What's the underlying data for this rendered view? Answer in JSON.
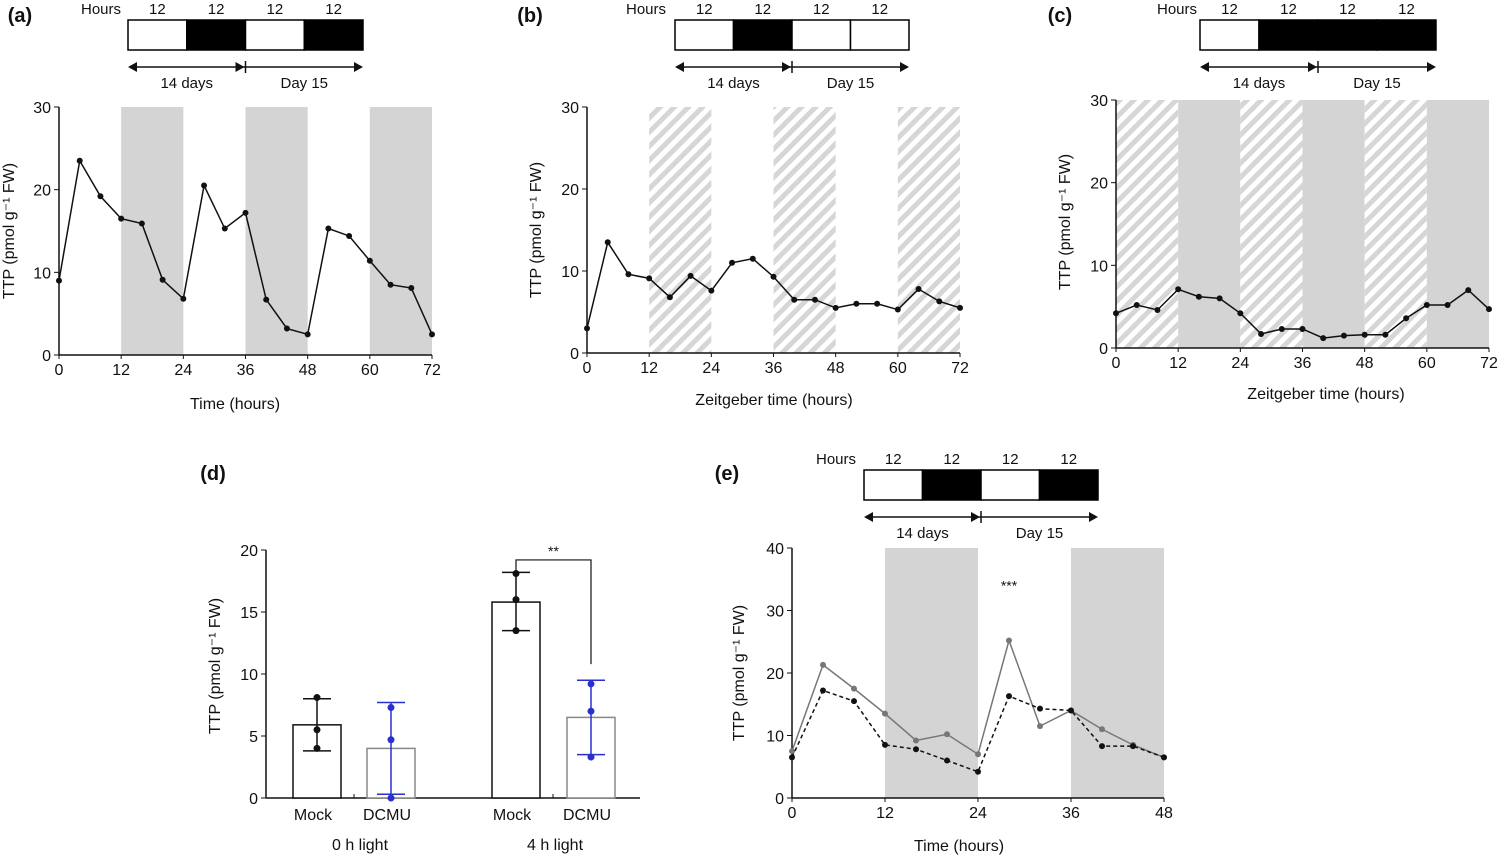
{
  "colors": {
    "shade": "#d4d4d4",
    "hatch": "#d6d6d6",
    "line": "#111111",
    "gray_series": "#777777",
    "blue": "#2a2fd0"
  },
  "chart_data": [
    {
      "panel": "(a)",
      "type": "line",
      "header": {
        "hours_label": "Hours",
        "segment_labels": [
          "12",
          "12",
          "12",
          "12"
        ],
        "segments": [
          "light",
          "dark",
          "light",
          "dark"
        ],
        "arrow_left": "14 days",
        "arrow_right": "Day 15"
      },
      "xlabel": "Time (hours)",
      "ylabel": "TTP (pmol g⁻¹ FW)",
      "xlim": [
        0,
        72
      ],
      "ylim": [
        0,
        30
      ],
      "xticks": [
        "0",
        "12",
        "24",
        "36",
        "48",
        "60",
        "72"
      ],
      "yticks": [
        "0",
        "10",
        "20",
        "30"
      ],
      "bands": [
        {
          "from": 12,
          "to": 24,
          "style": "gray"
        },
        {
          "from": 36,
          "to": 48,
          "style": "gray"
        },
        {
          "from": 60,
          "to": 72,
          "style": "gray"
        }
      ],
      "x": [
        0,
        4,
        8,
        12,
        16,
        20,
        24,
        28,
        32,
        36,
        40,
        44,
        48,
        52,
        56,
        60,
        64,
        68,
        72
      ],
      "series": [
        {
          "style": "solid",
          "color": "#111111",
          "values": [
            9,
            23.5,
            19.2,
            16.5,
            15.9,
            9.1,
            6.8,
            20.5,
            15.3,
            17.2,
            6.7,
            3.2,
            2.5,
            15.3,
            14.4,
            11.4,
            8.5,
            8.1,
            2.5
          ]
        }
      ]
    },
    {
      "panel": "(b)",
      "type": "line",
      "header": {
        "hours_label": "Hours",
        "segment_labels": [
          "12",
          "12",
          "12",
          "12"
        ],
        "segments": [
          "light",
          "dark",
          "light",
          "light"
        ],
        "arrow_left": "14 days",
        "arrow_right": "Day 15"
      },
      "xlabel": "Zeitgeber time (hours)",
      "ylabel": "TTP (pmol g⁻¹ FW)",
      "xlim": [
        0,
        72
      ],
      "ylim": [
        0,
        30
      ],
      "xticks": [
        "0",
        "12",
        "24",
        "36",
        "48",
        "60",
        "72"
      ],
      "yticks": [
        "0",
        "10",
        "20",
        "30"
      ],
      "bands": [
        {
          "from": 12,
          "to": 24,
          "style": "hatch"
        },
        {
          "from": 36,
          "to": 48,
          "style": "hatch"
        },
        {
          "from": 60,
          "to": 72,
          "style": "hatch"
        }
      ],
      "x": [
        0,
        4,
        8,
        12,
        16,
        20,
        24,
        28,
        32,
        36,
        40,
        44,
        48,
        52,
        56,
        60,
        64,
        68,
        72
      ],
      "series": [
        {
          "style": "solid",
          "color": "#111111",
          "values": [
            3,
            13.5,
            9.6,
            9.1,
            6.8,
            9.4,
            7.6,
            11,
            11.5,
            9.3,
            6.5,
            6.5,
            5.5,
            6,
            6,
            5.3,
            7.8,
            6.3,
            5.5
          ]
        }
      ]
    },
    {
      "panel": "(c)",
      "type": "line",
      "header": {
        "hours_label": "Hours",
        "segment_labels": [
          "12",
          "12",
          "12",
          "12"
        ],
        "segments": [
          "light",
          "dark",
          "dark",
          "dark"
        ],
        "arrow_left": "14 days",
        "arrow_right": "Day 15"
      },
      "xlabel": "Zeitgeber time (hours)",
      "ylabel": "TTP (pmol g⁻¹ FW)",
      "xlim": [
        0,
        72
      ],
      "ylim": [
        0,
        30
      ],
      "xticks": [
        "0",
        "12",
        "24",
        "36",
        "48",
        "60",
        "72"
      ],
      "yticks": [
        "0",
        "10",
        "20",
        "30"
      ],
      "bands": [
        {
          "from": 0,
          "to": 12,
          "style": "hatch"
        },
        {
          "from": 12,
          "to": 24,
          "style": "gray"
        },
        {
          "from": 24,
          "to": 36,
          "style": "hatch"
        },
        {
          "from": 36,
          "to": 48,
          "style": "gray"
        },
        {
          "from": 48,
          "to": 60,
          "style": "hatch"
        },
        {
          "from": 60,
          "to": 72,
          "style": "gray"
        }
      ],
      "x": [
        0,
        4,
        8,
        12,
        16,
        20,
        24,
        28,
        32,
        36,
        40,
        44,
        48,
        52,
        56,
        60,
        64,
        68,
        72
      ],
      "series": [
        {
          "style": "solid",
          "color": "#111111",
          "values": [
            4.2,
            5.2,
            4.6,
            7.1,
            6.2,
            6,
            4.2,
            1.7,
            2.3,
            2.3,
            1.2,
            1.5,
            1.6,
            1.6,
            3.6,
            5.2,
            5.2,
            7,
            4.7
          ]
        }
      ]
    },
    {
      "panel": "(d)",
      "type": "bar",
      "ylabel": "TTP (pmol g⁻¹ FW)",
      "ylim": [
        0,
        20
      ],
      "yticks": [
        "0",
        "5",
        "10",
        "15",
        "20"
      ],
      "groups": [
        "0 h light",
        "4 h light"
      ],
      "bars": [
        {
          "label": "Mock",
          "group": 0,
          "value": 5.9,
          "err": [
            3.8,
            8.0
          ],
          "points": [
            4.0,
            5.5,
            8.1
          ],
          "color": "#111111"
        },
        {
          "label": "DCMU",
          "group": 0,
          "value": 4.0,
          "err": [
            0.3,
            7.7
          ],
          "points": [
            0.0,
            4.7,
            7.3
          ],
          "color": "#2a2fd0"
        },
        {
          "label": "Mock",
          "group": 1,
          "value": 15.8,
          "err": [
            13.5,
            18.2
          ],
          "points": [
            13.5,
            16.0,
            18.1
          ],
          "color": "#111111"
        },
        {
          "label": "DCMU",
          "group": 1,
          "value": 6.5,
          "err": [
            3.5,
            9.5
          ],
          "points": [
            3.3,
            7.0,
            9.2
          ],
          "color": "#2a2fd0"
        }
      ],
      "significance": "**"
    },
    {
      "panel": "(e)",
      "type": "line",
      "header": {
        "hours_label": "Hours",
        "segment_labels": [
          "12",
          "12",
          "12",
          "12"
        ],
        "segments": [
          "light",
          "dark",
          "light",
          "dark"
        ],
        "arrow_left": "14 days",
        "arrow_right": "Day 15"
      },
      "xlabel": "Time (hours)",
      "ylabel": "TTP (pmol g⁻¹ FW)",
      "xlim": [
        0,
        48
      ],
      "ylim": [
        0,
        40
      ],
      "xticks": [
        "0",
        "12",
        "24",
        "36",
        "48"
      ],
      "yticks": [
        "0",
        "10",
        "20",
        "30",
        "40"
      ],
      "bands": [
        {
          "from": 12,
          "to": 24,
          "style": "gray"
        },
        {
          "from": 36,
          "to": 48,
          "style": "gray"
        }
      ],
      "x": [
        0,
        4,
        8,
        12,
        16,
        20,
        24,
        28,
        32,
        36,
        40,
        44,
        48
      ],
      "series": [
        {
          "style": "solid",
          "color": "#777777",
          "values": [
            7.5,
            21.3,
            17.5,
            13.5,
            9.2,
            10.2,
            7,
            25.2,
            11.5,
            14,
            11,
            8.5,
            6.5
          ]
        },
        {
          "style": "dashed",
          "color": "#111111",
          "values": [
            6.5,
            17.2,
            15.5,
            8.5,
            7.8,
            6,
            4.2,
            16.3,
            14.3,
            14,
            8.3,
            8.3,
            6.5
          ]
        }
      ],
      "annotation": {
        "x": 28,
        "text": "***"
      }
    }
  ]
}
